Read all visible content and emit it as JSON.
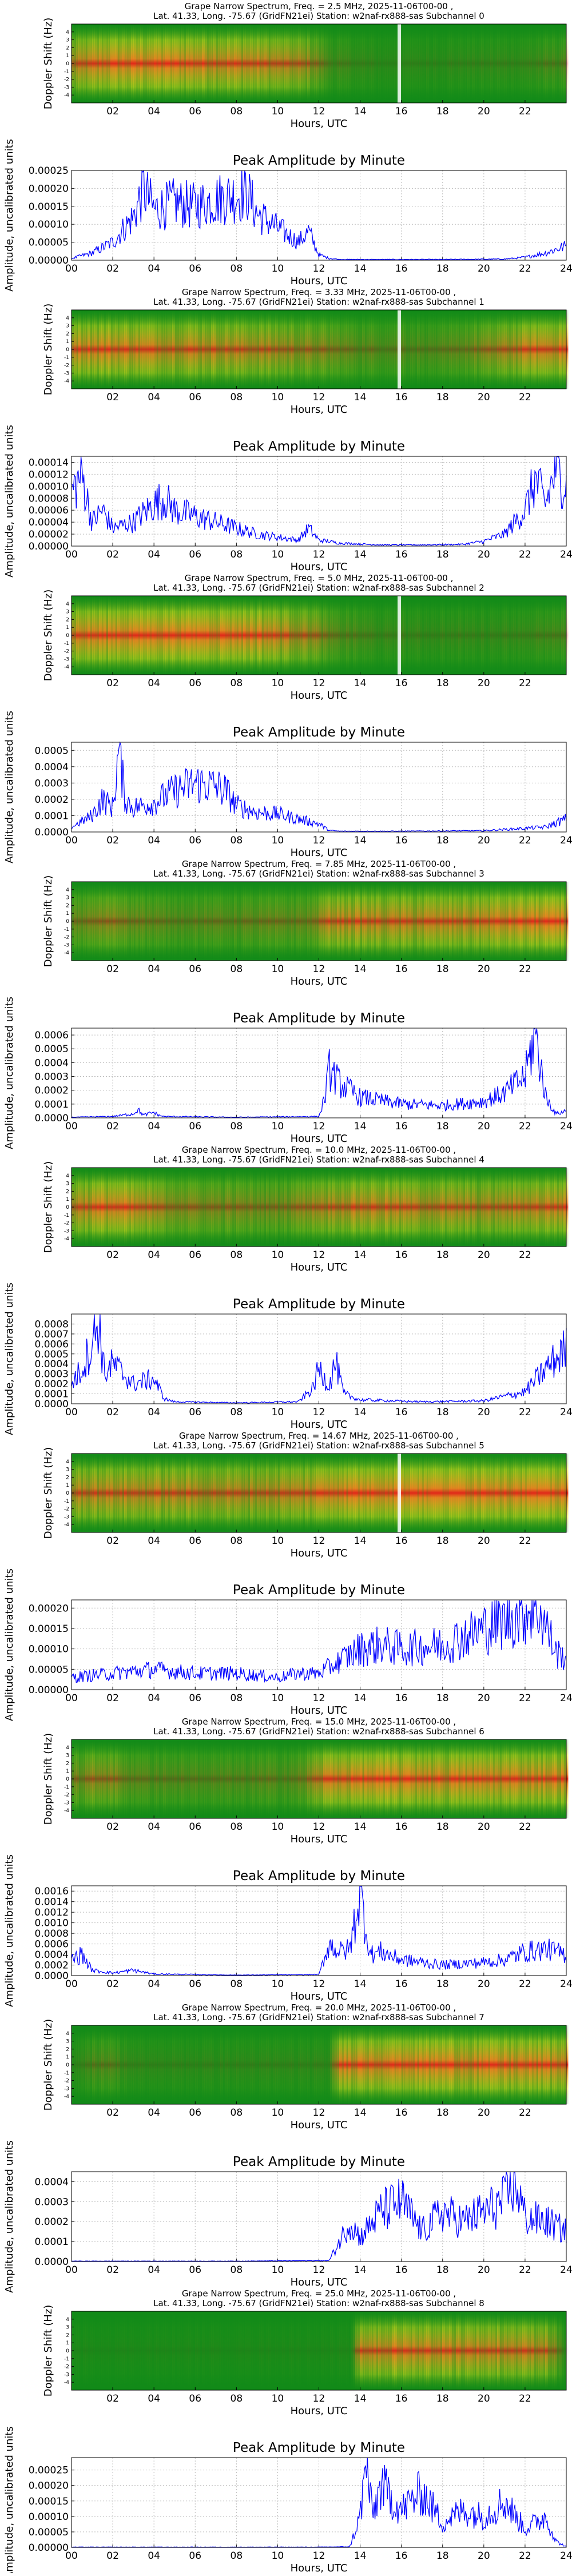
{
  "hours_ticks": [
    "00",
    "02",
    "04",
    "06",
    "08",
    "10",
    "12",
    "14",
    "16",
    "18",
    "20",
    "22",
    "24"
  ],
  "spec_ticks": [
    "02",
    "04",
    "06",
    "08",
    "10",
    "12",
    "14",
    "16",
    "18",
    "20",
    "22"
  ],
  "doppler_ticks": [
    "-4",
    "-3",
    "-2",
    "-1",
    "0",
    "1",
    "2",
    "3",
    "4"
  ],
  "doppler_label": "Doppler Shift (Hz)",
  "hours_label": "Hours, UTC",
  "amp_label": "Amplitude, uncalibrated units",
  "peak_title": "Peak Amplitude by Minute",
  "colors": {
    "line": "#0000ff",
    "spec_low": "#118a18",
    "spec_mid": "#f2e81d",
    "spec_high": "#f28520",
    "spec_peak": "#e0281a"
  },
  "chart_data": [
    {
      "type": "heatmap",
      "title_line1": "Grape Narrow Spectrum, Freq. = 2.5 MHz, 2025-11-06T00-00 ,",
      "title_line2": "Lat.  41.33, Long. -75.67 (GridFN21ei) Station: w2naf-rx888-sas Subchannel 0",
      "xlabel": "Hours, UTC",
      "ylabel": "Doppler Shift (Hz)",
      "xlim": [
        0,
        24
      ],
      "ylim": [
        -5,
        5
      ],
      "activity": [
        [
          0.0,
          0.6
        ],
        [
          1.5,
          0.85
        ],
        [
          3.5,
          0.9
        ],
        [
          6.0,
          0.85
        ],
        [
          9.0,
          0.75
        ],
        [
          11.5,
          0.55
        ],
        [
          12.5,
          0.2
        ],
        [
          15.0,
          0.1
        ],
        [
          22.0,
          0.15
        ],
        [
          24.0,
          0.25
        ]
      ],
      "ridge_hz": 0.0,
      "marker_hour": 15.9
    },
    {
      "type": "line",
      "title": "Peak Amplitude by Minute",
      "xlabel": "Hours, UTC",
      "ylabel": "Amplitude, uncalibrated units",
      "xlim": [
        0,
        24
      ],
      "ylim": [
        0,
        0.00025
      ],
      "yticks": [
        "0.00000",
        "0.00005",
        "0.00010",
        "0.00015",
        "0.00020",
        "0.00025"
      ],
      "x": [
        0,
        1,
        2,
        3,
        3.5,
        4,
        5,
        6,
        7,
        8,
        8.5,
        9,
        10,
        11,
        11.5,
        12,
        12.5,
        13,
        15,
        18,
        21,
        22,
        23,
        24
      ],
      "y": [
        5e-06,
        2e-05,
        5e-05,
        0.00012,
        0.0002,
        0.00014,
        0.00016,
        0.00015,
        0.00017,
        0.00018,
        0.00019,
        0.00013,
        9e-05,
        5e-05,
        8e-05,
        1.5e-05,
        5e-06,
        2e-06,
        2e-06,
        2e-06,
        3e-06,
        8e-06,
        2e-05,
        4e-05
      ]
    },
    {
      "type": "heatmap",
      "title_line1": "Grape Narrow Spectrum, Freq. = 3.33 MHz, 2025-11-06T00-00 ,",
      "title_line2": "Lat.  41.33, Long. -75.67 (GridFN21ei) Station: w2naf-rx888-sas Subchannel 1",
      "xlabel": "Hours, UTC",
      "ylabel": "Doppler Shift (Hz)",
      "xlim": [
        0,
        24
      ],
      "ylim": [
        -5,
        5
      ],
      "activity": [
        [
          0.0,
          0.85
        ],
        [
          3.0,
          0.8
        ],
        [
          6.0,
          0.75
        ],
        [
          9.0,
          0.65
        ],
        [
          12.0,
          0.45
        ],
        [
          14.0,
          0.3
        ],
        [
          18.0,
          0.25
        ],
        [
          20.0,
          0.45
        ],
        [
          22.5,
          0.8
        ],
        [
          24.0,
          0.85
        ]
      ],
      "ridge_hz": 0.0,
      "marker_hour": 15.9
    },
    {
      "type": "line",
      "title": "Peak Amplitude by Minute",
      "xlabel": "Hours, UTC",
      "ylabel": "Amplitude, uncalibrated units",
      "xlim": [
        0,
        24
      ],
      "ylim": [
        0,
        0.00015
      ],
      "yticks": [
        "0.00000",
        "0.00002",
        "0.00004",
        "0.00006",
        "0.00008",
        "0.00010",
        "0.00012",
        "0.00014"
      ],
      "x": [
        0,
        0.5,
        1,
        1.5,
        2,
        3,
        4,
        4.5,
        5,
        6,
        7,
        8,
        9,
        10,
        11,
        11.5,
        12,
        13,
        15,
        17,
        19,
        20,
        21,
        22,
        22.5,
        23,
        23.5,
        24
      ],
      "y": [
        9e-05,
        0.00012,
        4e-05,
        6e-05,
        3e-05,
        4e-05,
        7e-05,
        8e-05,
        6e-05,
        5e-05,
        4e-05,
        3e-05,
        2e-05,
        1.5e-05,
        1e-05,
        3e-05,
        1e-05,
        5e-06,
        2e-06,
        2e-06,
        3e-06,
        8e-06,
        2e-05,
        6e-05,
        0.00011,
        7e-05,
        0.00013,
        0.0001
      ]
    },
    {
      "type": "heatmap",
      "title_line1": "Grape Narrow Spectrum, Freq. = 5.0 MHz, 2025-11-06T00-00 ,",
      "title_line2": "Lat.  41.33, Long. -75.67 (GridFN21ei) Station: w2naf-rx888-sas Subchannel 2",
      "xlabel": "Hours, UTC",
      "ylabel": "Doppler Shift (Hz)",
      "xlim": [
        0,
        24
      ],
      "ylim": [
        -5,
        5
      ],
      "activity": [
        [
          0.0,
          0.8
        ],
        [
          3.0,
          0.95
        ],
        [
          6.0,
          1.0
        ],
        [
          9.0,
          0.85
        ],
        [
          11.5,
          0.6
        ],
        [
          12.5,
          0.3
        ],
        [
          15.0,
          0.15
        ],
        [
          20.0,
          0.15
        ],
        [
          24.0,
          0.2
        ]
      ],
      "ridge_hz": 0.0,
      "marker_hour": 15.9
    },
    {
      "type": "line",
      "title": "Peak Amplitude by Minute",
      "xlabel": "Hours, UTC",
      "ylabel": "Amplitude, uncalibrated units",
      "xlim": [
        0,
        24
      ],
      "ylim": [
        0,
        0.00055
      ],
      "yticks": [
        "0.0000",
        "0.0001",
        "0.0002",
        "0.0003",
        "0.0004",
        "0.0005"
      ],
      "x": [
        0,
        1,
        1.5,
        2,
        2.3,
        2.6,
        3,
        4,
        5,
        6,
        7,
        7.5,
        8,
        9,
        10,
        11,
        12,
        12.5,
        13,
        16,
        20,
        23,
        24
      ],
      "y": [
        3e-05,
        0.0001,
        0.0002,
        0.00015,
        0.0005,
        0.0002,
        0.00015,
        0.00018,
        0.00025,
        0.0003,
        0.00028,
        0.00025,
        0.00016,
        0.00012,
        0.00011,
        8e-05,
        5e-05,
        1e-05,
        5e-06,
        5e-06,
        8e-06,
        3e-05,
        8e-05
      ]
    },
    {
      "type": "heatmap",
      "title_line1": "Grape Narrow Spectrum, Freq. = 7.85 MHz, 2025-11-06T00-00 ,",
      "title_line2": "Lat.  41.33, Long. -75.67 (GridFN21ei) Station: w2naf-rx888-sas Subchannel 3",
      "xlabel": "Hours, UTC",
      "ylabel": "Doppler Shift (Hz)",
      "xlim": [
        0,
        24
      ],
      "ylim": [
        -5,
        5
      ],
      "activity": [
        [
          0.0,
          0.35
        ],
        [
          2.0,
          0.5
        ],
        [
          4.0,
          0.3
        ],
        [
          8.0,
          0.3
        ],
        [
          11.5,
          0.35
        ],
        [
          12.5,
          0.75
        ],
        [
          16.0,
          0.7
        ],
        [
          20.0,
          0.75
        ],
        [
          23.0,
          0.9
        ],
        [
          24.0,
          0.8
        ]
      ],
      "ridge_hz": 0.0,
      "marker_hour": null
    },
    {
      "type": "line",
      "title": "Peak Amplitude by Minute",
      "xlabel": "Hours, UTC",
      "ylabel": "Amplitude, uncalibrated units",
      "xlim": [
        0,
        24
      ],
      "ylim": [
        0,
        0.00065
      ],
      "yticks": [
        "0.0000",
        "0.0001",
        "0.0002",
        "0.0003",
        "0.0004",
        "0.0005",
        "0.0006"
      ],
      "x": [
        0,
        2,
        3,
        3.2,
        3.5,
        4,
        4.2,
        4.5,
        8,
        12,
        12.3,
        12.5,
        13,
        14,
        16,
        18,
        20,
        21,
        22,
        22.5,
        23,
        23.5,
        24
      ],
      "y": [
        5e-06,
        1e-05,
        3e-05,
        6e-05,
        2e-05,
        4e-05,
        2e-05,
        1e-05,
        5e-06,
        1e-05,
        0.00015,
        0.00035,
        0.00025,
        0.00015,
        0.0001,
        9e-05,
        0.00012,
        0.00018,
        0.0003,
        0.00062,
        0.00015,
        3e-05,
        5e-05
      ]
    },
    {
      "type": "heatmap",
      "title_line1": "Grape Narrow Spectrum, Freq. = 10.0 MHz, 2025-11-06T00-00 ,",
      "title_line2": "Lat.  41.33, Long. -75.67 (GridFN21ei) Station: w2naf-rx888-sas Subchannel 4",
      "xlabel": "Hours, UTC",
      "ylabel": "Doppler Shift (Hz)",
      "xlim": [
        0,
        24
      ],
      "ylim": [
        -5,
        5
      ],
      "activity": [
        [
          0.0,
          0.7
        ],
        [
          2.0,
          0.85
        ],
        [
          4.0,
          0.6
        ],
        [
          6.0,
          0.45
        ],
        [
          10.0,
          0.4
        ],
        [
          12.0,
          0.65
        ],
        [
          14.0,
          0.75
        ],
        [
          20.0,
          0.6
        ],
        [
          23.0,
          0.75
        ],
        [
          24.0,
          0.8
        ]
      ],
      "ridge_hz": 0.0,
      "marker_hour": null
    },
    {
      "type": "line",
      "title": "Peak Amplitude by Minute",
      "xlabel": "Hours, UTC",
      "ylabel": "Amplitude, uncalibrated units",
      "xlim": [
        0,
        24
      ],
      "ylim": [
        0,
        0.0009
      ],
      "yticks": [
        "0.0000",
        "0.0001",
        "0.0002",
        "0.0003",
        "0.0004",
        "0.0005",
        "0.0006",
        "0.0007",
        "0.0008"
      ],
      "x": [
        0,
        0.5,
        1,
        1.3,
        1.6,
        2,
        3,
        4,
        4.5,
        5,
        8,
        11,
        11.7,
        12,
        12.5,
        12.8,
        13.2,
        14,
        17,
        20,
        22,
        23,
        24
      ],
      "y": [
        0.0002,
        0.00035,
        0.0006,
        0.00085,
        0.0003,
        0.0004,
        0.0002,
        0.00025,
        5e-05,
        2e-05,
        1e-05,
        2e-05,
        0.00015,
        0.00035,
        0.00018,
        0.00042,
        0.0001,
        4e-05,
        2e-05,
        3e-05,
        0.00012,
        0.00035,
        0.00055
      ]
    },
    {
      "type": "heatmap",
      "title_line1": "Grape Narrow Spectrum, Freq. = 14.67 MHz, 2025-11-06T00-00 ,",
      "title_line2": "Lat.  41.33, Long. -75.67 (GridFN21ei) Station: w2naf-rx888-sas Subchannel 5",
      "xlabel": "Hours, UTC",
      "ylabel": "Doppler Shift (Hz)",
      "xlim": [
        0,
        24
      ],
      "ylim": [
        -5,
        5
      ],
      "activity": [
        [
          0.0,
          0.75
        ],
        [
          4.0,
          0.7
        ],
        [
          8.0,
          0.65
        ],
        [
          11.0,
          0.7
        ],
        [
          12.5,
          0.9
        ],
        [
          16.0,
          1.0
        ],
        [
          20.0,
          1.0
        ],
        [
          24.0,
          0.95
        ]
      ],
      "ridge_hz": 0.0,
      "marker_hour": 15.9
    },
    {
      "type": "line",
      "title": "Peak Amplitude by Minute",
      "xlabel": "Hours, UTC",
      "ylabel": "Amplitude, uncalibrated units",
      "xlim": [
        0,
        24
      ],
      "ylim": [
        0,
        0.00022
      ],
      "yticks": [
        "0.00000",
        "0.00005",
        "0.00010",
        "0.00015",
        "0.00020"
      ],
      "x": [
        0,
        2,
        4,
        6,
        8,
        10,
        11,
        12,
        13,
        14,
        15,
        16,
        18,
        19,
        20,
        21,
        22,
        22.5,
        23,
        23.5,
        24
      ],
      "y": [
        3e-05,
        4e-05,
        5e-05,
        4e-05,
        4e-05,
        3e-05,
        4e-05,
        4e-05,
        7e-05,
        0.0001,
        0.00011,
        0.0001,
        0.00011,
        0.00013,
        0.00015,
        0.00017,
        0.00019,
        0.00021,
        0.00016,
        9e-05,
        8e-05
      ]
    },
    {
      "type": "heatmap",
      "title_line1": "Grape Narrow Spectrum, Freq. = 15.0 MHz, 2025-11-06T00-00 ,",
      "title_line2": "Lat.  41.33, Long. -75.67 (GridFN21ei) Station: w2naf-rx888-sas Subchannel 6",
      "xlabel": "Hours, UTC",
      "ylabel": "Doppler Shift (Hz)",
      "xlim": [
        0,
        24
      ],
      "ylim": [
        -5,
        5
      ],
      "activity": [
        [
          0.0,
          0.35
        ],
        [
          1.5,
          0.55
        ],
        [
          3.0,
          0.3
        ],
        [
          8.0,
          0.25
        ],
        [
          11.0,
          0.3
        ],
        [
          12.5,
          0.85
        ],
        [
          16.0,
          0.85
        ],
        [
          20.0,
          0.8
        ],
        [
          24.0,
          0.85
        ]
      ],
      "ridge_hz": 0.0,
      "marker_hour": null
    },
    {
      "type": "line",
      "title": "Peak Amplitude by Minute",
      "xlabel": "Hours, UTC",
      "ylabel": "Amplitude, uncalibrated units",
      "xlim": [
        0,
        24
      ],
      "ylim": [
        0,
        0.0017
      ],
      "yticks": [
        "0.0000",
        "0.0002",
        "0.0004",
        "0.0006",
        "0.0008",
        "0.0010",
        "0.0012",
        "0.0014",
        "0.0016"
      ],
      "x": [
        0,
        0.5,
        1,
        2,
        3,
        4,
        8,
        12,
        12.5,
        13,
        13.5,
        14,
        14.5,
        15,
        16,
        18,
        20,
        21,
        22,
        23,
        24
      ],
      "y": [
        0.0003,
        0.0004,
        0.0001,
        5e-05,
        0.0001,
        3e-05,
        1e-05,
        2e-05,
        0.0006,
        0.00045,
        0.0005,
        0.0016,
        0.0004,
        0.00045,
        0.0003,
        0.0002,
        0.00025,
        0.0003,
        0.00045,
        0.0005,
        0.0004
      ]
    },
    {
      "type": "heatmap",
      "title_line1": "Grape Narrow Spectrum, Freq. = 20.0 MHz, 2025-11-06T00-00 ,",
      "title_line2": "Lat.  41.33, Long. -75.67 (GridFN21ei) Station: w2naf-rx888-sas Subchannel 7",
      "xlabel": "Hours, UTC",
      "ylabel": "Doppler Shift (Hz)",
      "xlim": [
        0,
        24
      ],
      "ylim": [
        -5,
        5
      ],
      "activity": [
        [
          0.0,
          0.1
        ],
        [
          1.5,
          0.3
        ],
        [
          3.0,
          0.12
        ],
        [
          12.5,
          0.12
        ],
        [
          13.0,
          0.9
        ],
        [
          16.0,
          0.9
        ],
        [
          20.0,
          0.85
        ],
        [
          24.0,
          0.8
        ]
      ],
      "ridge_hz": 0.0,
      "marker_hour": null
    },
    {
      "type": "line",
      "title": "Peak Amplitude by Minute",
      "xlabel": "Hours, UTC",
      "ylabel": "Amplitude, uncalibrated units",
      "xlim": [
        0,
        24
      ],
      "ylim": [
        0,
        0.00045
      ],
      "yticks": [
        "0.0000",
        "0.0001",
        "0.0002",
        "0.0003",
        "0.0004"
      ],
      "x": [
        0,
        4,
        8,
        12.5,
        13,
        13.5,
        14,
        15,
        16,
        17,
        18,
        19,
        20,
        21,
        21.5,
        22,
        23,
        24
      ],
      "y": [
        2e-06,
        2e-06,
        2e-06,
        5e-06,
        0.0001,
        0.0002,
        0.00012,
        0.00025,
        0.0003,
        0.00015,
        0.00025,
        0.0002,
        0.00025,
        0.0003,
        0.00042,
        0.00022,
        0.0002,
        0.00015
      ]
    },
    {
      "type": "heatmap",
      "title_line1": "Grape Narrow Spectrum, Freq. = 25.0 MHz, 2025-11-06T00-00 ,",
      "title_line2": "Lat.  41.33, Long. -75.67 (GridFN21ei) Station: w2naf-rx888-sas Subchannel 8",
      "xlabel": "Hours, UTC",
      "ylabel": "Doppler Shift (Hz)",
      "xlim": [
        0,
        24
      ],
      "ylim": [
        -5,
        5
      ],
      "activity": [
        [
          0.0,
          0.05
        ],
        [
          13.5,
          0.05
        ],
        [
          14.0,
          0.75
        ],
        [
          16.0,
          0.8
        ],
        [
          20.0,
          0.75
        ],
        [
          23.0,
          0.7
        ],
        [
          24.0,
          0.05
        ]
      ],
      "ridge_hz": 0.0,
      "marker_hour": null
    },
    {
      "type": "line",
      "title": "Peak Amplitude by Minute",
      "xlabel": "Hours, UTC",
      "ylabel": "Amplitude, uncalibrated units",
      "xlim": [
        0,
        24
      ],
      "ylim": [
        0,
        0.00029
      ],
      "yticks": [
        "0.00000",
        "0.00005",
        "0.00010",
        "0.00015",
        "0.00020",
        "0.00025"
      ],
      "x": [
        0,
        4,
        8,
        12,
        13.5,
        14,
        14.3,
        14.6,
        15,
        16,
        17,
        18,
        19,
        20,
        21,
        22,
        23,
        23.5,
        24
      ],
      "y": [
        1e-06,
        1e-06,
        1e-06,
        1e-06,
        2e-06,
        0.0001,
        0.00027,
        0.0001,
        0.0002,
        0.00012,
        0.00018,
        8e-05,
        0.00012,
        0.0001,
        0.00015,
        6e-05,
        0.0001,
        2e-05,
        2e-06
      ]
    }
  ]
}
